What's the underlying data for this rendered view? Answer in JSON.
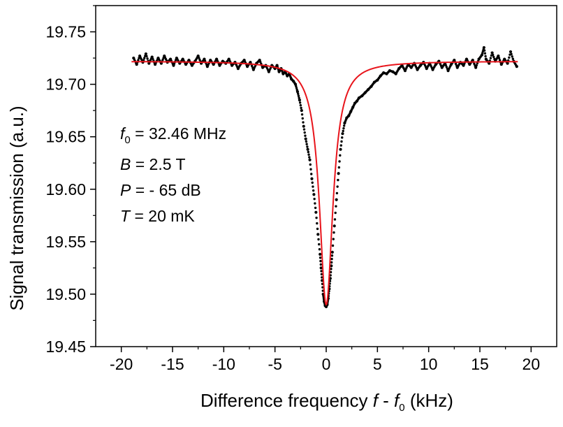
{
  "chart_data": {
    "type": "scatter",
    "title": "",
    "xlabel": {
      "main": "Difference frequency ",
      "var1": "f",
      "sep": " - ",
      "var2": "f",
      "sub": "0",
      "unit": " (kHz)"
    },
    "ylabel": "Signal transmission (a.u.)",
    "xlim": [
      -22.5,
      22.5
    ],
    "ylim": [
      19.45,
      19.775
    ],
    "x_ticks": [
      -20,
      -15,
      -10,
      -5,
      0,
      5,
      10,
      15,
      20
    ],
    "x_tick_labels": [
      "-20",
      "-15",
      "-10",
      "-5",
      "0",
      "5",
      "10",
      "15",
      "20"
    ],
    "y_ticks": [
      19.45,
      19.5,
      19.55,
      19.6,
      19.65,
      19.7,
      19.75
    ],
    "y_tick_labels": [
      "19.45",
      "19.50",
      "19.55",
      "19.60",
      "19.65",
      "19.70",
      "19.75"
    ],
    "grid": false,
    "legend": "none",
    "annotations": [
      {
        "var": "f",
        "sub": "0",
        "rest": " = 32.46 MHz"
      },
      {
        "var": "B",
        "sub": "",
        "rest": " = 2.5 T"
      },
      {
        "var": "P",
        "sub": "",
        "rest": " = - 65 dB"
      },
      {
        "var": "T",
        "sub": "",
        "rest": " = 20 mK"
      }
    ],
    "series": [
      {
        "kind": "measured",
        "color": "#000000",
        "points": [
          [
            -18.8,
            19.725
          ],
          [
            -18.5,
            19.719
          ],
          [
            -18.2,
            19.727
          ],
          [
            -17.9,
            19.721
          ],
          [
            -17.6,
            19.729
          ],
          [
            -17.3,
            19.72
          ],
          [
            -17.0,
            19.726
          ],
          [
            -16.7,
            19.719
          ],
          [
            -16.4,
            19.725
          ],
          [
            -16.1,
            19.72
          ],
          [
            -15.8,
            19.727
          ],
          [
            -15.5,
            19.721
          ],
          [
            -15.2,
            19.724
          ],
          [
            -14.9,
            19.718
          ],
          [
            -14.6,
            19.725
          ],
          [
            -14.3,
            19.72
          ],
          [
            -14.0,
            19.724
          ],
          [
            -13.7,
            19.719
          ],
          [
            -13.4,
            19.723
          ],
          [
            -13.1,
            19.718
          ],
          [
            -12.8,
            19.722
          ],
          [
            -12.5,
            19.727
          ],
          [
            -12.2,
            19.72
          ],
          [
            -11.9,
            19.724
          ],
          [
            -11.6,
            19.717
          ],
          [
            -11.3,
            19.723
          ],
          [
            -11.0,
            19.719
          ],
          [
            -10.7,
            19.724
          ],
          [
            -10.4,
            19.718
          ],
          [
            -10.1,
            19.722
          ],
          [
            -9.8,
            19.72
          ],
          [
            -9.5,
            19.724
          ],
          [
            -9.2,
            19.718
          ],
          [
            -8.9,
            19.721
          ],
          [
            -8.6,
            19.715
          ],
          [
            -8.3,
            19.72
          ],
          [
            -8.0,
            19.723
          ],
          [
            -7.7,
            19.717
          ],
          [
            -7.4,
            19.721
          ],
          [
            -7.1,
            19.714
          ],
          [
            -6.8,
            19.72
          ],
          [
            -6.5,
            19.723
          ],
          [
            -6.2,
            19.716
          ],
          [
            -5.9,
            19.718
          ],
          [
            -5.6,
            19.712
          ],
          [
            -5.3,
            19.718
          ],
          [
            -5.0,
            19.715
          ],
          [
            -4.8,
            19.718
          ],
          [
            -4.6,
            19.712
          ],
          [
            -4.4,
            19.715
          ],
          [
            -4.2,
            19.71
          ],
          [
            -4.0,
            19.712
          ],
          [
            -3.8,
            19.708
          ],
          [
            -3.6,
            19.71
          ],
          [
            -3.4,
            19.705
          ],
          [
            -3.2,
            19.703
          ],
          [
            -3.0,
            19.7
          ],
          [
            -2.8,
            19.693
          ],
          [
            -2.6,
            19.685
          ],
          [
            -2.4,
            19.675
          ],
          [
            -2.2,
            19.66
          ],
          [
            -2.0,
            19.648
          ],
          [
            -1.8,
            19.638
          ],
          [
            -1.6,
            19.628
          ],
          [
            -1.4,
            19.61
          ],
          [
            -1.2,
            19.595
          ],
          [
            -1.0,
            19.578
          ],
          [
            -0.8,
            19.557
          ],
          [
            -0.6,
            19.538
          ],
          [
            -0.5,
            19.525
          ],
          [
            -0.4,
            19.513
          ],
          [
            -0.3,
            19.5
          ],
          [
            -0.2,
            19.493
          ],
          [
            -0.1,
            19.489
          ],
          [
            0.0,
            19.488
          ],
          [
            0.1,
            19.49
          ],
          [
            0.2,
            19.496
          ],
          [
            0.3,
            19.505
          ],
          [
            0.4,
            19.515
          ],
          [
            0.5,
            19.527
          ],
          [
            0.6,
            19.54
          ],
          [
            0.8,
            19.565
          ],
          [
            1.0,
            19.59
          ],
          [
            1.2,
            19.615
          ],
          [
            1.4,
            19.638
          ],
          [
            1.6,
            19.653
          ],
          [
            1.8,
            19.663
          ],
          [
            2.0,
            19.668
          ],
          [
            2.2,
            19.67
          ],
          [
            2.4,
            19.674
          ],
          [
            2.6,
            19.678
          ],
          [
            2.8,
            19.682
          ],
          [
            3.0,
            19.684
          ],
          [
            3.2,
            19.687
          ],
          [
            3.5,
            19.689
          ],
          [
            3.8,
            19.692
          ],
          [
            4.1,
            19.695
          ],
          [
            4.4,
            19.698
          ],
          [
            4.7,
            19.702
          ],
          [
            5.0,
            19.704
          ],
          [
            5.3,
            19.708
          ],
          [
            5.6,
            19.711
          ],
          [
            5.9,
            19.71
          ],
          [
            6.2,
            19.713
          ],
          [
            6.5,
            19.712
          ],
          [
            6.8,
            19.71
          ],
          [
            7.1,
            19.715
          ],
          [
            7.4,
            19.718
          ],
          [
            7.7,
            19.713
          ],
          [
            8.0,
            19.719
          ],
          [
            8.3,
            19.716
          ],
          [
            8.6,
            19.72
          ],
          [
            8.9,
            19.714
          ],
          [
            9.2,
            19.718
          ],
          [
            9.5,
            19.721
          ],
          [
            9.8,
            19.715
          ],
          [
            10.1,
            19.72
          ],
          [
            10.4,
            19.714
          ],
          [
            10.7,
            19.719
          ],
          [
            11.0,
            19.722
          ],
          [
            11.3,
            19.716
          ],
          [
            11.6,
            19.72
          ],
          [
            11.9,
            19.713
          ],
          [
            12.2,
            19.719
          ],
          [
            12.5,
            19.723
          ],
          [
            12.8,
            19.716
          ],
          [
            13.1,
            19.721
          ],
          [
            13.4,
            19.718
          ],
          [
            13.7,
            19.724
          ],
          [
            14.0,
            19.719
          ],
          [
            14.3,
            19.723
          ],
          [
            14.6,
            19.716
          ],
          [
            14.9,
            19.724
          ],
          [
            15.2,
            19.728
          ],
          [
            15.4,
            19.735
          ],
          [
            15.6,
            19.724
          ],
          [
            15.9,
            19.72
          ],
          [
            16.2,
            19.73
          ],
          [
            16.5,
            19.722
          ],
          [
            16.8,
            19.727
          ],
          [
            17.1,
            19.719
          ],
          [
            17.4,
            19.724
          ],
          [
            17.7,
            19.72
          ],
          [
            18.0,
            19.731
          ],
          [
            18.3,
            19.722
          ],
          [
            18.6,
            19.717
          ]
        ]
      },
      {
        "kind": "fit",
        "color": "#e8141b",
        "model": "lorentzian",
        "baseline": 19.722,
        "depth": 0.232,
        "center": 0.0,
        "hwhm": 0.8,
        "x_range": [
          -19.0,
          18.7
        ]
      }
    ]
  }
}
